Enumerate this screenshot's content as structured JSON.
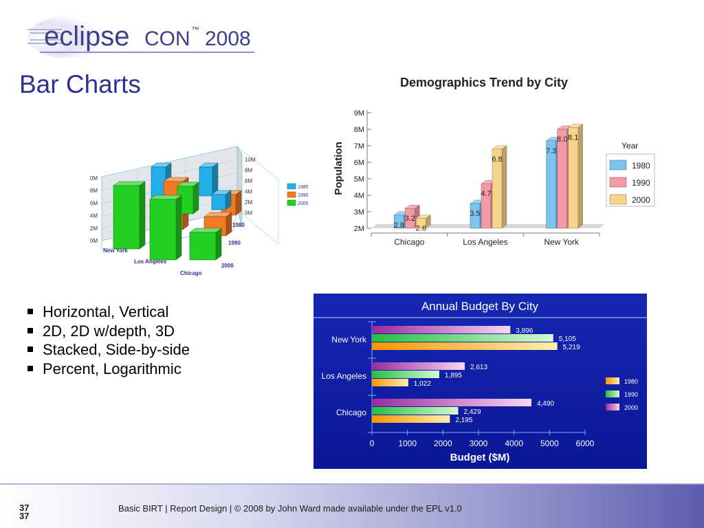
{
  "logo": {
    "text_main": "eclipse",
    "text_con": "CON",
    "tm": "™",
    "year": "2008"
  },
  "slide": {
    "title": "Bar Charts"
  },
  "bullets": [
    "Horizontal, Vertical",
    "2D, 2D w/depth, 3D",
    "Stacked, Side-by-side",
    "Percent, Logarithmic"
  ],
  "footer": {
    "page_top": "37",
    "page_bottom": "37",
    "text": "Basic BIRT  |  Report Design  |  © 2008 by John Ward made available under the EPL v1.0"
  },
  "chart_data": [
    {
      "type": "bar",
      "title": "",
      "categories": [
        "New York",
        "Los Angeles",
        "Chicago"
      ],
      "series_labels": [
        "1980",
        "1990",
        "2000"
      ],
      "left_ticks": [
        "10M",
        "8M",
        "6M",
        "4M",
        "2M",
        "0M"
      ],
      "right_ticks": [
        "10M",
        "8M",
        "6M",
        "4M",
        "2M",
        "0M"
      ],
      "legend": [
        "1980",
        "1990",
        "2000"
      ],
      "colors": [
        "#23b0e8",
        "#f07a22",
        "#22d022"
      ],
      "ylim": [
        0,
        10
      ]
    },
    {
      "type": "bar",
      "title": "Demographics Trend by City",
      "ylabel": "Population",
      "categories": [
        "Chicago",
        "Los Angeles",
        "New York"
      ],
      "series": [
        {
          "name": "1980",
          "values": [
            2.8,
            3.5,
            7.3
          ],
          "color": "#7cc4ee"
        },
        {
          "name": "1990",
          "values": [
            3.2,
            4.7,
            8.0
          ],
          "color": "#f49aa6"
        },
        {
          "name": "2000",
          "values": [
            2.6,
            6.8,
            8.1
          ],
          "color": "#f7d48a"
        }
      ],
      "y_ticks": [
        "9M",
        "8M",
        "7M",
        "6M",
        "5M",
        "4M",
        "3M",
        "2M"
      ],
      "ylim": [
        2,
        9
      ],
      "legend_title": "Year",
      "legend_placement": "right"
    },
    {
      "type": "bar",
      "title": "Annual Budget By City",
      "xlabel": "Budget ($M)",
      "categories": [
        "New York",
        "Los Angeles",
        "Chicago"
      ],
      "series": [
        {
          "name": "2000",
          "values": [
            3896,
            2613,
            4490
          ],
          "labels": [
            "3,896",
            "2,613",
            "4,490"
          ],
          "color": "#b23cb3"
        },
        {
          "name": "1990",
          "values": [
            5105,
            1895,
            2429
          ],
          "labels": [
            "5,105",
            "1,895",
            "2,429"
          ],
          "color": "#3ed85a"
        },
        {
          "name": "1980",
          "values": [
            5219,
            1022,
            2195
          ],
          "labels": [
            "5,219",
            "1,022",
            "2,195"
          ],
          "color": "#ffa21a"
        }
      ],
      "x_ticks": [
        "0",
        "1000",
        "2000",
        "3000",
        "4000",
        "5000",
        "6000"
      ],
      "xlim": [
        0,
        6000
      ],
      "legend": [
        "1980",
        "1990",
        "2000"
      ],
      "legend_placement": "right",
      "background": "#0d1fa8"
    }
  ]
}
